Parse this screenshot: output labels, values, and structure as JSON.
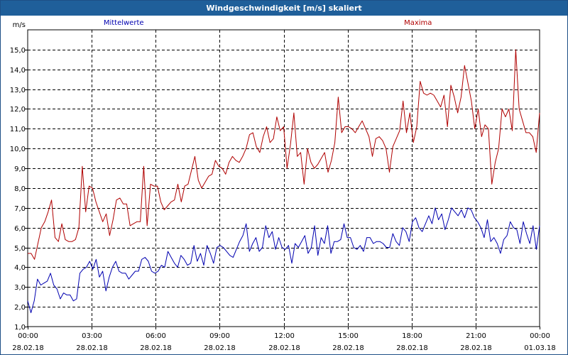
{
  "window": {
    "title": "Windgeschwindigkeit [m/s] skaliert"
  },
  "colors": {
    "mean": "#0000b0",
    "max": "#b00000",
    "grid": "#000000",
    "titlebar": "#1f5f9a"
  },
  "chart_data": {
    "type": "line",
    "ylabel": "m/s",
    "ylim": [
      1.0,
      16.0
    ],
    "yticks": [
      "1,0",
      "2,0",
      "3,0",
      "4,0",
      "5,0",
      "6,0",
      "7,0",
      "8,0",
      "9,0",
      "10,0",
      "11,0",
      "12,0",
      "13,0",
      "14,0",
      "15,0"
    ],
    "xlim": [
      0,
      24
    ],
    "xticks": [
      {
        "time": "00:00",
        "date": "28.02.18"
      },
      {
        "time": "03:00",
        "date": "28.02.18"
      },
      {
        "time": "06:00",
        "date": "28.02.18"
      },
      {
        "time": "09:00",
        "date": "28.02.18"
      },
      {
        "time": "12:00",
        "date": "28.02.18"
      },
      {
        "time": "15:00",
        "date": "28.02.18"
      },
      {
        "time": "18:00",
        "date": "28.02.18"
      },
      {
        "time": "21:00",
        "date": "28.02.18"
      },
      {
        "time": "00:00",
        "date": "01.03.18"
      }
    ],
    "grid": true,
    "series": [
      {
        "name": "Mittelwerte",
        "color": "#0000b0",
        "values": [
          2.3,
          1.7,
          2.3,
          3.4,
          3.1,
          3.2,
          3.3,
          3.7,
          3.1,
          2.9,
          2.4,
          2.7,
          2.6,
          2.6,
          2.3,
          2.4,
          3.7,
          3.9,
          4.0,
          4.3,
          3.9,
          4.4,
          3.5,
          3.8,
          2.8,
          3.5,
          4.0,
          4.3,
          3.8,
          3.7,
          3.7,
          3.4,
          3.6,
          3.8,
          3.8,
          4.4,
          4.5,
          4.3,
          3.8,
          3.7,
          3.8,
          4.1,
          4.0,
          4.8,
          4.5,
          4.2,
          4.0,
          4.6,
          4.4,
          4.1,
          4.2,
          5.1,
          4.3,
          4.7,
          4.1,
          5.1,
          4.7,
          4.2,
          5.0,
          5.1,
          5.0,
          4.8,
          4.6,
          4.5,
          4.9,
          5.3,
          5.6,
          6.2,
          4.8,
          5.2,
          5.5,
          4.8,
          5.0,
          6.1,
          5.5,
          5.8,
          4.9,
          5.5,
          5.0,
          4.9,
          5.1,
          4.2,
          5.2,
          5.0,
          5.3,
          5.6,
          4.7,
          5.0,
          6.1,
          4.6,
          5.5,
          5.2,
          6.1,
          4.7,
          5.3,
          5.3,
          5.4,
          6.2,
          5.5,
          5.5,
          5.0,
          4.9,
          5.1,
          4.8,
          5.5,
          5.5,
          5.2,
          5.3,
          5.3,
          5.2,
          5.0,
          5.0,
          5.7,
          5.3,
          5.1,
          6.0,
          5.8,
          5.3,
          6.3,
          6.5,
          6.0,
          5.8,
          6.2,
          6.6,
          6.2,
          7.0,
          6.4,
          6.7,
          5.9,
          6.4,
          7.0,
          6.8,
          6.6,
          6.9,
          6.5,
          7.0,
          6.9,
          6.5,
          6.3,
          6.0,
          5.5,
          6.4,
          5.3,
          5.5,
          5.2,
          4.7,
          5.4,
          5.6,
          6.3,
          6.0,
          5.9,
          5.2,
          6.3,
          5.7,
          5.2,
          6.1,
          4.9,
          6.1
        ],
        "source": "approx"
      },
      {
        "name": "Maxima",
        "color": "#b00000",
        "values": [
          4.7,
          4.7,
          4.4,
          5.2,
          6.0,
          6.3,
          6.8,
          7.4,
          5.5,
          5.3,
          6.2,
          5.4,
          5.3,
          5.3,
          5.4,
          6.0,
          9.1,
          6.8,
          8.1,
          8.0,
          7.3,
          6.8,
          6.3,
          6.7,
          5.6,
          6.4,
          7.4,
          7.5,
          7.2,
          7.2,
          6.1,
          6.2,
          6.3,
          6.3,
          9.1,
          6.1,
          8.2,
          8.1,
          8.1,
          7.3,
          6.9,
          7.1,
          7.3,
          7.4,
          8.2,
          7.3,
          8.1,
          8.2,
          8.9,
          9.6,
          8.4,
          8.0,
          8.3,
          8.6,
          8.7,
          9.4,
          9.1,
          9.0,
          8.7,
          9.3,
          9.6,
          9.4,
          9.3,
          9.6,
          10.0,
          10.7,
          10.8,
          10.1,
          9.8,
          10.6,
          11.1,
          10.3,
          10.5,
          11.6,
          10.9,
          11.1,
          9.0,
          10.2,
          11.8,
          9.6,
          9.8,
          8.2,
          10.0,
          9.3,
          9.0,
          9.2,
          9.5,
          9.8,
          8.8,
          9.4,
          10.3,
          12.6,
          10.8,
          11.1,
          11.1,
          11.0,
          10.8,
          11.1,
          11.4,
          11.0,
          10.6,
          9.6,
          10.5,
          10.6,
          10.4,
          10.0,
          8.8,
          10.1,
          10.5,
          10.9,
          12.4,
          10.8,
          11.8,
          10.3,
          11.1,
          13.4,
          12.8,
          12.7,
          12.8,
          12.7,
          12.4,
          12.1,
          12.7,
          11.1,
          13.2,
          12.6,
          11.8,
          12.6,
          14.2,
          13.3,
          12.4,
          11.0,
          12.0,
          10.6,
          11.2,
          11.0,
          8.2,
          9.3,
          10.0,
          12.0,
          11.6,
          12.0,
          10.9,
          15.0,
          12.0,
          11.4,
          10.8,
          10.8,
          10.6,
          9.8,
          11.8
        ],
        "source": "approx"
      }
    ]
  }
}
